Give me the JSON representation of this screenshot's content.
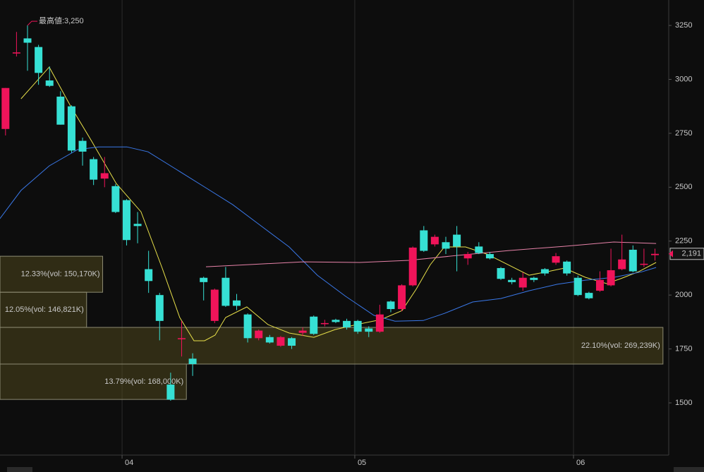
{
  "chart_data": {
    "type": "candlestick",
    "x": [
      0,
      1,
      2,
      3,
      4,
      5,
      6,
      7,
      8,
      9,
      10,
      11,
      12,
      13,
      14,
      15,
      16,
      17,
      18,
      19,
      20,
      21,
      22,
      23,
      24,
      25,
      26,
      27,
      28,
      29,
      30,
      31,
      32,
      33,
      34,
      35,
      36,
      37,
      38,
      39,
      40,
      41,
      42,
      43,
      44,
      45,
      46,
      47,
      48,
      49,
      50,
      51,
      52,
      53,
      54,
      55,
      56,
      57,
      58,
      59
    ],
    "open": [
      2770,
      3120,
      3190,
      3150,
      2995,
      2920,
      2875,
      2715,
      2630,
      2540,
      2505,
      2440,
      2330,
      2120,
      2000,
      1585,
      1795,
      1705,
      2080,
      1880,
      2080,
      1975,
      1910,
      1800,
      1805,
      1765,
      1800,
      1825,
      1900,
      1865,
      1885,
      1880,
      1880,
      1845,
      1830,
      1970,
      1935,
      2045,
      2300,
      2235,
      2245,
      2280,
      2170,
      2225,
      2190,
      2125,
      2070,
      2035,
      2080,
      2120,
      2150,
      2155,
      2080,
      2010,
      2020,
      2045,
      2120,
      2210,
      2140,
      2185
    ],
    "high": [
      2960,
      3220,
      3250,
      3160,
      3060,
      2945,
      2880,
      2730,
      2640,
      2640,
      2515,
      2445,
      2385,
      2205,
      2010,
      1640,
      1880,
      1730,
      2085,
      2030,
      2130,
      2005,
      1915,
      1840,
      1815,
      1810,
      1805,
      1850,
      1905,
      1885,
      1890,
      1890,
      1885,
      1855,
      1955,
      1975,
      2050,
      2225,
      2320,
      2280,
      2270,
      2320,
      2200,
      2245,
      2200,
      2130,
      2080,
      2105,
      2085,
      2125,
      2195,
      2160,
      2090,
      2015,
      2110,
      2215,
      2280,
      2230,
      2215,
      2215
    ],
    "low": [
      2740,
      3106,
      3040,
      2975,
      2965,
      2790,
      2660,
      2600,
      2510,
      2500,
      2380,
      2230,
      2240,
      2010,
      1790,
      1510,
      1715,
      1625,
      1975,
      1870,
      1945,
      1930,
      1780,
      1790,
      1775,
      1760,
      1750,
      1810,
      1815,
      1855,
      1870,
      1840,
      1820,
      1805,
      1825,
      1920,
      1925,
      2040,
      2200,
      2225,
      2190,
      2110,
      2140,
      2190,
      2165,
      2070,
      2050,
      2020,
      2060,
      2090,
      2140,
      2090,
      1995,
      1980,
      2015,
      2040,
      2115,
      2105,
      2130,
      2160
    ],
    "close": [
      2960,
      3125,
      3170,
      3030,
      2970,
      2790,
      2670,
      2665,
      2535,
      2565,
      2385,
      2255,
      2320,
      2065,
      1880,
      1515,
      1800,
      1680,
      2060,
      2025,
      1950,
      1950,
      1800,
      1835,
      1780,
      1805,
      1765,
      1835,
      1820,
      1870,
      1875,
      1850,
      1830,
      1830,
      1910,
      1935,
      2045,
      2220,
      2205,
      2270,
      2215,
      2225,
      2190,
      2195,
      2170,
      2075,
      2060,
      2080,
      2070,
      2100,
      2180,
      2100,
      2000,
      1985,
      2070,
      2115,
      2165,
      2110,
      2145,
      2191
    ],
    "up_color": "#f0145a",
    "down_color": "#36e0d4",
    "lines": [
      {
        "color": "#e8e04a",
        "x": [
          1.41,
          3.97,
          5.9,
          7.82,
          10.06,
          12.31,
          14.23,
          15.83,
          17.12,
          18.08,
          19.04,
          20.0,
          21.92,
          23.85,
          25.77,
          28.01,
          29.94,
          31.86,
          34.1,
          36.03,
          37.31,
          38.59,
          39.87,
          41.79,
          43.72,
          45.64,
          47.56,
          49.17,
          50.77,
          52.69,
          54.62,
          55.9,
          57.5,
          59.1
        ],
        "values": [
          2910,
          3057,
          2877,
          2714,
          2517,
          2386,
          2125,
          1896,
          1788,
          1788,
          1814,
          1896,
          1945,
          1863,
          1824,
          1804,
          1840,
          1863,
          1886,
          1928,
          2027,
          2141,
          2223,
          2223,
          2190,
          2141,
          2092,
          2108,
          2125,
          2082,
          2053,
          2076,
          2108,
          2151
        ]
      },
      {
        "color": "#3a78e8",
        "x": [
          -0.51,
          1.41,
          3.97,
          6.54,
          8.46,
          11.03,
          12.95,
          15.51,
          18.08,
          20.64,
          23.21,
          25.77,
          28.33,
          30.9,
          33.46,
          35.38,
          37.95,
          39.87,
          42.44,
          45,
          47.56,
          50.13,
          52.69,
          55.26,
          57.82,
          59.1
        ],
        "values": [
          2354,
          2485,
          2599,
          2674,
          2687,
          2687,
          2664,
          2583,
          2501,
          2419,
          2321,
          2223,
          2092,
          1994,
          1906,
          1879,
          1882,
          1915,
          1968,
          1984,
          2020,
          2050,
          2069,
          2082,
          2108,
          2128
        ]
      },
      {
        "color": "#e682a8",
        "x": [
          18.21,
          22.03,
          27.05,
          32.18,
          36.67,
          41.15,
          45.64,
          50.77,
          55.26,
          59.1
        ],
        "values": [
          2131,
          2141,
          2154,
          2151,
          2161,
          2184,
          2206,
          2226,
          2246,
          2239
        ]
      }
    ],
    "profile": [
      {
        "range": [
          2013,
          2180
        ],
        "value": 12.33,
        "value_label": "12.33%(vol: 150,170K)"
      },
      {
        "range": [
          1850,
          2013
        ],
        "value": 12.05,
        "value_label": "12.05%(vol: 146,821K)"
      },
      {
        "range": [
          1680,
          1850
        ],
        "value": 22.1,
        "value_label": "22.10%(vol: 269,239K)"
      },
      {
        "range": [
          1516,
          1680
        ],
        "value": 13.79,
        "value_label": "13.79%(vol: 168,000K)"
      }
    ],
    "max_marker": {
      "x": 2,
      "value": 3250,
      "label": "最高値:3,250"
    },
    "last_price": {
      "value": 2191,
      "label": "2,191"
    },
    "xlim": [
      -0.5,
      60.25
    ],
    "ylim": [
      1258,
      3368
    ],
    "xticks": [
      {
        "value": 10.59,
        "label": "04"
      },
      {
        "value": 31.73,
        "label": "05"
      },
      {
        "value": 51.6,
        "label": "06"
      }
    ],
    "yticks": [
      1500,
      1750,
      2000,
      2250,
      2500,
      2750,
      3000,
      3250
    ]
  }
}
